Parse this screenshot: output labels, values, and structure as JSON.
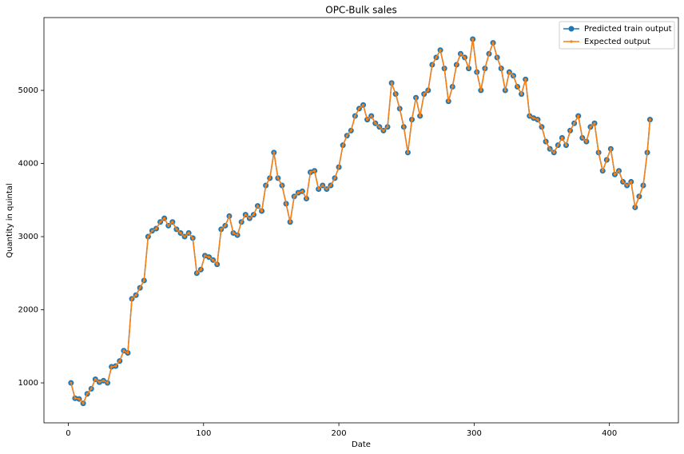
{
  "chart_data": {
    "type": "line",
    "title": "OPC-Bulk sales",
    "x_label": "Date",
    "y_label": "Quantity in quintal",
    "x": [
      2,
      5,
      8,
      11,
      14,
      17,
      20,
      23,
      26,
      29,
      32,
      35,
      38,
      41,
      44,
      47,
      50,
      53,
      56,
      59,
      62,
      65,
      68,
      71,
      74,
      77,
      80,
      83,
      86,
      89,
      92,
      95,
      98,
      101,
      104,
      107,
      110,
      113,
      116,
      119,
      122,
      125,
      128,
      131,
      134,
      137,
      140,
      143,
      146,
      149,
      152,
      155,
      158,
      161,
      164,
      167,
      170,
      173,
      176,
      179,
      182,
      185,
      188,
      191,
      194,
      197,
      200,
      203,
      206,
      209,
      212,
      215,
      218,
      221,
      224,
      227,
      230,
      233,
      236,
      239,
      242,
      245,
      248,
      251,
      254,
      257,
      260,
      263,
      266,
      269,
      272,
      275,
      278,
      281,
      284,
      287,
      290,
      293,
      296,
      299,
      302,
      305,
      308,
      311,
      314,
      317,
      320,
      323,
      326,
      329,
      332,
      335,
      338,
      341,
      344,
      347,
      350,
      353,
      356,
      359,
      362,
      365,
      368,
      371,
      374,
      377,
      380,
      383,
      386,
      389,
      392,
      395,
      398,
      401,
      404,
      407,
      410,
      413,
      416,
      419,
      422,
      425,
      428,
      430
    ],
    "series": [
      {
        "name": "Predicted train output",
        "color": "#1f77b4",
        "values": [
          1000,
          790,
          780,
          720,
          850,
          920,
          1050,
          1010,
          1030,
          1000,
          1220,
          1230,
          1300,
          1440,
          1410,
          2150,
          2200,
          2300,
          2400,
          3000,
          3080,
          3110,
          3200,
          3250,
          3150,
          3200,
          3100,
          3050,
          3000,
          3050,
          2980,
          2500,
          2550,
          2740,
          2720,
          2680,
          2620,
          3100,
          3150,
          3280,
          3050,
          3020,
          3200,
          3300,
          3250,
          3300,
          3420,
          3350,
          3700,
          3800,
          4150,
          3800,
          3700,
          3450,
          3200,
          3550,
          3600,
          3620,
          3520,
          3880,
          3900,
          3650,
          3700,
          3650,
          3700,
          3800,
          3950,
          4250,
          4380,
          4450,
          4650,
          4750,
          4800,
          4600,
          4650,
          4550,
          4500,
          4450,
          4500,
          5100,
          4950,
          4750,
          4500,
          4150,
          4600,
          4900,
          4650,
          4950,
          5000,
          5350,
          5450,
          5550,
          5300,
          4850,
          5050,
          5350,
          5500,
          5450,
          5300,
          5700,
          5250,
          5000,
          5300,
          5500,
          5650,
          5450,
          5300,
          5000,
          5250,
          5200,
          5050,
          4950,
          5150,
          4650,
          4620,
          4600,
          4500,
          4300,
          4200,
          4150,
          4250,
          4350,
          4250,
          4450,
          4550,
          4650,
          4350,
          4300,
          4500,
          4550,
          4150,
          3900,
          4050,
          4200,
          3850,
          3900,
          3750,
          3700,
          3750,
          3400,
          3550,
          3700,
          4150,
          4600
        ]
      },
      {
        "name": "Expected output",
        "color": "#ff7f0e",
        "values": [
          1000,
          790,
          780,
          720,
          850,
          920,
          1050,
          1010,
          1030,
          1000,
          1220,
          1230,
          1300,
          1440,
          1410,
          2150,
          2200,
          2300,
          2400,
          3000,
          3080,
          3110,
          3200,
          3250,
          3150,
          3200,
          3100,
          3050,
          3000,
          3050,
          2980,
          2500,
          2550,
          2740,
          2720,
          2680,
          2620,
          3100,
          3150,
          3280,
          3050,
          3020,
          3200,
          3300,
          3250,
          3300,
          3420,
          3350,
          3700,
          3800,
          4150,
          3800,
          3700,
          3450,
          3200,
          3550,
          3600,
          3620,
          3520,
          3880,
          3900,
          3650,
          3700,
          3650,
          3700,
          3800,
          3950,
          4250,
          4380,
          4450,
          4650,
          4750,
          4800,
          4600,
          4650,
          4550,
          4500,
          4450,
          4500,
          5100,
          4950,
          4750,
          4500,
          4150,
          4600,
          4900,
          4650,
          4950,
          5000,
          5350,
          5450,
          5550,
          5300,
          4850,
          5050,
          5350,
          5500,
          5450,
          5300,
          5700,
          5250,
          5000,
          5300,
          5500,
          5650,
          5450,
          5300,
          5000,
          5250,
          5200,
          5050,
          4950,
          5150,
          4650,
          4620,
          4600,
          4500,
          4300,
          4200,
          4150,
          4250,
          4350,
          4250,
          4450,
          4550,
          4650,
          4350,
          4300,
          4500,
          4550,
          4150,
          3900,
          4050,
          4200,
          3850,
          3900,
          3750,
          3700,
          3750,
          3400,
          3550,
          3700,
          4150,
          4600
        ]
      }
    ],
    "xlim": [
      -18,
      451
    ],
    "xticks": [
      0,
      100,
      200,
      300,
      400
    ],
    "ylim": [
      454,
      5995
    ],
    "yticks": [
      1000,
      2000,
      3000,
      4000,
      5000
    ],
    "legend": "upper right"
  }
}
